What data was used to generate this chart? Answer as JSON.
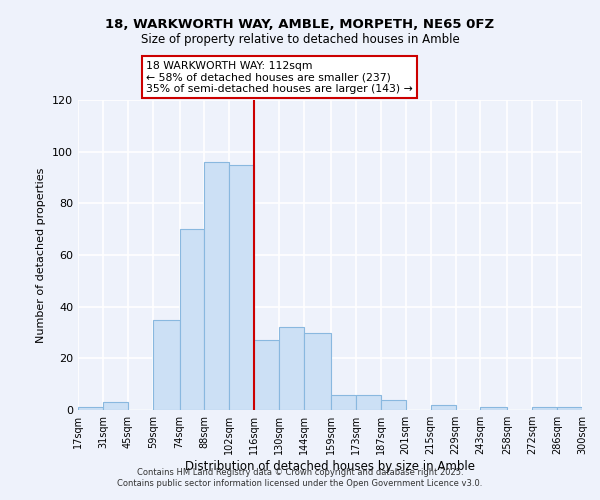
{
  "title_line1": "18, WARKWORTH WAY, AMBLE, MORPETH, NE65 0FZ",
  "title_line2": "Size of property relative to detached houses in Amble",
  "xlabel": "Distribution of detached houses by size in Amble",
  "ylabel": "Number of detached properties",
  "bar_color": "#cce0f5",
  "bar_edge_color": "#89b8df",
  "bin_edges": [
    17,
    31,
    45,
    59,
    74,
    88,
    102,
    116,
    130,
    144,
    159,
    173,
    187,
    201,
    215,
    229,
    243,
    258,
    272,
    286,
    300
  ],
  "bin_labels": [
    "17sqm",
    "31sqm",
    "45sqm",
    "59sqm",
    "74sqm",
    "88sqm",
    "102sqm",
    "116sqm",
    "130sqm",
    "144sqm",
    "159sqm",
    "173sqm",
    "187sqm",
    "201sqm",
    "215sqm",
    "229sqm",
    "243sqm",
    "258sqm",
    "272sqm",
    "286sqm",
    "300sqm"
  ],
  "counts": [
    1,
    3,
    0,
    35,
    70,
    96,
    95,
    27,
    32,
    30,
    6,
    6,
    4,
    0,
    2,
    0,
    1,
    0,
    1,
    1
  ],
  "vline_x": 116,
  "vline_color": "#cc0000",
  "annotation_line1": "18 WARKWORTH WAY: 112sqm",
  "annotation_line2": "← 58% of detached houses are smaller (237)",
  "annotation_line3": "35% of semi-detached houses are larger (143) →",
  "ylim": [
    0,
    120
  ],
  "yticks": [
    0,
    20,
    40,
    60,
    80,
    100,
    120
  ],
  "background_color": "#eef2fb",
  "grid_color": "#ffffff",
  "footer_line1": "Contains HM Land Registry data © Crown copyright and database right 2025.",
  "footer_line2": "Contains public sector information licensed under the Open Government Licence v3.0."
}
